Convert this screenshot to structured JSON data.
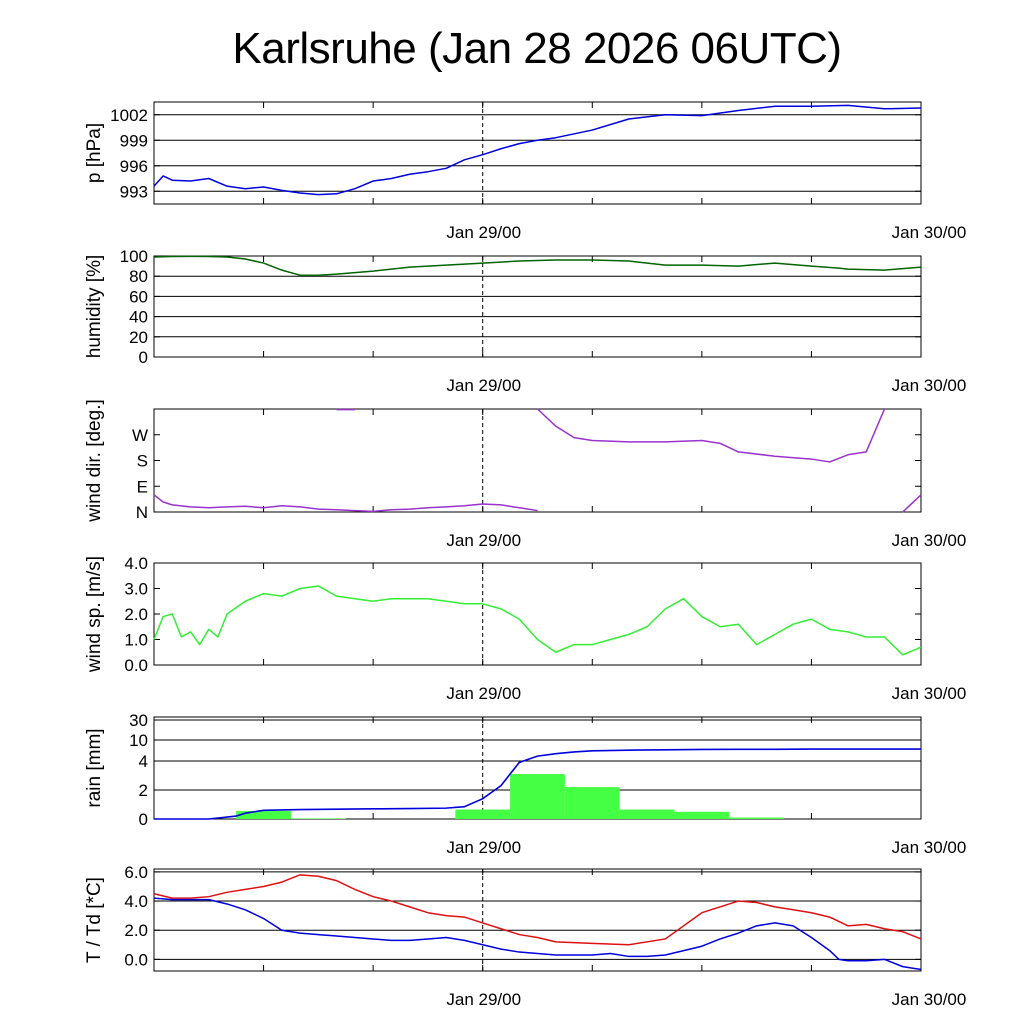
{
  "title": "Karlsruhe (Jan 28 2026 06UTC)",
  "colors": {
    "pressure": "#0000dd",
    "humidity": "#006400",
    "wind_dir": "#9933cc",
    "wind_speed": "#33ee33",
    "rain_bar": "#44ff44",
    "rain_line": "#0000dd",
    "temperature": "#dd1111",
    "dewpoint": "#0000dd"
  },
  "chart_data": [
    {
      "id": "pressure",
      "type": "line",
      "ylabel": "p [hPa]",
      "ylim": [
        991.5,
        1003.5
      ],
      "yticks": [
        993,
        996,
        999,
        1002
      ],
      "ytick_labels": [
        "993",
        "996",
        "999",
        "1002"
      ],
      "grid": true,
      "x_ticks": [
        "Jan 29/00",
        "Jan 30/00"
      ],
      "series": [
        {
          "x": [
            0,
            0.5,
            1,
            2,
            3,
            4,
            5,
            6,
            7,
            8,
            9,
            10,
            11,
            12,
            13,
            14,
            15,
            16,
            17,
            18,
            19,
            20,
            21,
            22,
            24,
            26,
            28,
            30,
            32,
            34,
            36,
            38,
            40,
            42
          ],
          "y": [
            993.6,
            994.8,
            994.3,
            994.2,
            994.5,
            993.6,
            993.3,
            993.5,
            993.1,
            992.8,
            992.6,
            992.7,
            993.3,
            994.2,
            994.5,
            995.0,
            995.3,
            995.7,
            996.7,
            997.3,
            998.0,
            998.6,
            999.0,
            999.3,
            1000.2,
            1001.5,
            1002.0,
            1001.9,
            1002.5,
            1003.0,
            1003.0,
            1003.1,
            1002.7,
            1002.8
          ]
        }
      ]
    },
    {
      "id": "humidity",
      "type": "line",
      "ylabel": "humidity [%]",
      "ylim": [
        0,
        100
      ],
      "yticks": [
        0,
        20,
        40,
        60,
        80,
        100
      ],
      "ytick_labels": [
        "0",
        "20",
        "40",
        "60",
        "80",
        "100"
      ],
      "grid": true,
      "x_ticks": [
        "Jan 29/00",
        "Jan 30/00"
      ],
      "series": [
        {
          "x": [
            0,
            1,
            2,
            3,
            4,
            5,
            6,
            7,
            8,
            9,
            10,
            12,
            14,
            16,
            18,
            20,
            22,
            24,
            26,
            28,
            30,
            32,
            34,
            36,
            37.5,
            38,
            40,
            42
          ],
          "y": [
            99,
            99.5,
            99.6,
            99.5,
            99,
            97,
            93,
            86,
            81,
            81,
            82,
            85,
            89,
            91,
            93,
            95,
            96,
            96,
            95,
            91,
            91,
            90,
            93,
            90,
            88,
            87,
            86,
            89
          ]
        }
      ]
    },
    {
      "id": "wind_dir",
      "type": "line",
      "ylabel": "wind dir. [deg.]",
      "ylim": [
        0,
        360
      ],
      "yticks": [
        0,
        90,
        180,
        270
      ],
      "ytick_labels": [
        "N",
        "E",
        "S",
        "W"
      ],
      "grid": false,
      "x_ticks": [
        "Jan 29/00",
        "Jan 30/00"
      ],
      "series": [
        {
          "x": [
            0,
            0.5,
            1,
            2,
            3,
            4,
            5,
            6,
            7,
            8,
            9,
            10,
            11,
            12,
            13,
            14,
            15,
            16,
            17,
            18,
            19,
            20,
            21
          ],
          "y": [
            60,
            35,
            25,
            18,
            15,
            18,
            20,
            15,
            22,
            18,
            10,
            8,
            5,
            2,
            8,
            10,
            15,
            18,
            22,
            28,
            25,
            15,
            5
          ]
        },
        {
          "x": [
            10,
            11
          ],
          "y": [
            358,
            358
          ]
        },
        {
          "x": [
            21,
            22,
            23,
            24,
            26,
            28,
            30,
            31,
            32,
            34,
            36,
            37,
            38,
            39,
            40
          ],
          "y": [
            360,
            300,
            260,
            250,
            245,
            245,
            250,
            240,
            210,
            195,
            185,
            175,
            200,
            210,
            360
          ]
        },
        {
          "x": [
            41,
            42
          ],
          "y": [
            0,
            60
          ]
        }
      ]
    },
    {
      "id": "wind_speed",
      "type": "line",
      "ylabel": "wind sp. [m/s]",
      "ylim": [
        0,
        4
      ],
      "yticks": [
        0,
        1,
        2,
        3,
        4
      ],
      "ytick_labels": [
        "0.0",
        "1.0",
        "2.0",
        "3.0",
        "4.0"
      ],
      "grid": false,
      "x_ticks": [
        "Jan 29/00",
        "Jan 30/00"
      ],
      "series": [
        {
          "x": [
            0,
            0.5,
            1,
            1.5,
            2,
            2.5,
            3,
            3.5,
            4,
            5,
            6,
            7,
            8,
            9,
            10,
            11,
            12,
            13,
            14,
            15,
            16,
            17,
            18,
            19,
            20,
            21,
            22,
            23,
            24,
            25,
            26,
            27,
            28,
            29,
            30,
            31,
            32,
            33,
            34,
            35,
            36,
            37,
            38,
            39,
            40,
            41,
            42
          ],
          "y": [
            1.0,
            1.9,
            2.0,
            1.1,
            1.3,
            0.8,
            1.4,
            1.1,
            2.0,
            2.5,
            2.8,
            2.7,
            3.0,
            3.1,
            2.7,
            2.6,
            2.5,
            2.6,
            2.6,
            2.6,
            2.5,
            2.4,
            2.4,
            2.2,
            1.8,
            1.0,
            0.5,
            0.8,
            0.8,
            1.0,
            1.2,
            1.5,
            2.2,
            2.6,
            1.9,
            1.5,
            1.6,
            0.8,
            1.2,
            1.6,
            1.8,
            1.4,
            1.3,
            1.1,
            1.1,
            0.4,
            0.7
          ]
        }
      ]
    },
    {
      "id": "rain",
      "type": "bar",
      "ylabel": "rain [mm]",
      "yticks": [
        0,
        2,
        4,
        10,
        30
      ],
      "ytick_labels": [
        "0",
        "2",
        "4",
        "10",
        "30"
      ],
      "grid": true,
      "x_ticks": [
        "Jan 29/00",
        "Jan 30/00"
      ],
      "bars": [
        {
          "x0": 4.5,
          "x1": 7.5,
          "value": 0.55
        },
        {
          "x0": 7.5,
          "x1": 10.5,
          "value": 0.04
        },
        {
          "x0": 16.5,
          "x1": 19.5,
          "value": 0.65
        },
        {
          "x0": 19.5,
          "x1": 22.5,
          "value": 3.1
        },
        {
          "x0": 22.5,
          "x1": 25.5,
          "value": 2.2
        },
        {
          "x0": 25.5,
          "x1": 28.5,
          "value": 0.65
        },
        {
          "x0": 28.5,
          "x1": 31.5,
          "value": 0.5
        },
        {
          "x0": 31.5,
          "x1": 34.5,
          "value": 0.1
        }
      ],
      "cumulative": {
        "x": [
          0,
          3,
          4.5,
          5,
          6,
          8,
          10,
          12,
          14,
          16,
          17,
          18,
          19,
          20,
          21,
          22,
          23,
          24,
          26,
          28,
          30,
          32,
          34,
          36,
          42
        ],
        "y": [
          0,
          0,
          0.2,
          0.4,
          0.6,
          0.65,
          0.68,
          0.7,
          0.72,
          0.75,
          0.85,
          1.4,
          2.3,
          3.9,
          5.4,
          6.1,
          6.6,
          6.9,
          7.1,
          7.2,
          7.3,
          7.35,
          7.35,
          7.4,
          7.4
        ]
      }
    },
    {
      "id": "temperature",
      "type": "line",
      "ylabel": "T / Td [*C]",
      "ylim": [
        -0.8,
        6.2
      ],
      "yticks": [
        0,
        2,
        4,
        6
      ],
      "ytick_labels": [
        "0.0",
        "2.0",
        "4.0",
        "6.0"
      ],
      "grid": true,
      "x_ticks": [
        "Jan 29/00",
        "Jan 30/00"
      ],
      "series": [
        {
          "name": "T",
          "x": [
            0,
            1,
            2,
            3,
            4,
            5,
            6,
            7,
            8,
            9,
            10,
            11,
            12,
            13,
            14,
            15,
            16,
            17,
            18,
            19,
            20,
            21,
            22,
            24,
            26,
            28,
            30,
            32,
            33,
            34,
            35,
            36,
            37,
            37.5,
            38,
            39,
            40,
            41,
            42
          ],
          "y": [
            4.5,
            4.2,
            4.2,
            4.3,
            4.6,
            4.8,
            5.0,
            5.3,
            5.8,
            5.7,
            5.4,
            4.8,
            4.3,
            4.0,
            3.6,
            3.2,
            3.0,
            2.9,
            2.5,
            2.1,
            1.7,
            1.5,
            1.2,
            1.1,
            1.0,
            1.4,
            3.2,
            4.0,
            3.9,
            3.6,
            3.4,
            3.2,
            2.9,
            2.6,
            2.3,
            2.4,
            2.1,
            1.9,
            1.4
          ]
        },
        {
          "name": "Td",
          "x": [
            0,
            1,
            2,
            3,
            4,
            5,
            6,
            7,
            8,
            9,
            10,
            11,
            12,
            13,
            14,
            15,
            16,
            17,
            18,
            19,
            20,
            21,
            22,
            24,
            25,
            26,
            27,
            28,
            30,
            31,
            32,
            33,
            34,
            35,
            36,
            37,
            37.5,
            38,
            39,
            40,
            41,
            42
          ],
          "y": [
            4.2,
            4.1,
            4.1,
            4.1,
            3.8,
            3.4,
            2.8,
            2.0,
            1.8,
            1.7,
            1.6,
            1.5,
            1.4,
            1.3,
            1.3,
            1.4,
            1.5,
            1.3,
            1.0,
            0.7,
            0.5,
            0.4,
            0.3,
            0.3,
            0.4,
            0.2,
            0.2,
            0.3,
            0.9,
            1.4,
            1.8,
            2.3,
            2.5,
            2.3,
            1.5,
            0.6,
            0.0,
            -0.1,
            -0.1,
            0.0,
            -0.5,
            -0.7
          ]
        }
      ]
    }
  ]
}
